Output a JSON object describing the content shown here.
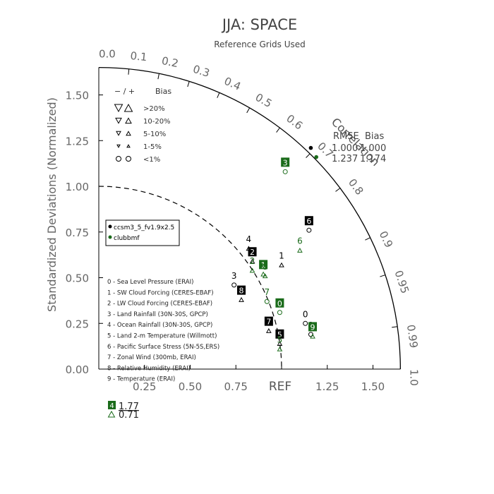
{
  "chart_data": {
    "type": "taylor",
    "title": "JJA: SPACE",
    "subtitle": "Reference Grids Used",
    "ylabel": "Standardized Deviations (Normalized)",
    "xlabel_ref": "REF",
    "correlation_label": "Correlation",
    "std_ticks": [
      "0.25",
      "0.50",
      "0.75",
      "1.00",
      "1.25",
      "1.50"
    ],
    "y_ticks": [
      "0.00",
      "0.25",
      "0.50",
      "0.75",
      "1.00",
      "1.25",
      "1.50"
    ],
    "corr_ticks": [
      {
        "label": "0.0",
        "r": 0.0
      },
      {
        "label": "0.1",
        "r": 0.1
      },
      {
        "label": "0.2",
        "r": 0.2
      },
      {
        "label": "0.3",
        "r": 0.3
      },
      {
        "label": "0.4",
        "r": 0.4
      },
      {
        "label": "0.5",
        "r": 0.5
      },
      {
        "label": "0.6",
        "r": 0.6
      },
      {
        "label": "0.7",
        "r": 0.7
      },
      {
        "label": "0.8",
        "r": 0.8
      },
      {
        "label": "0.9",
        "r": 0.9
      },
      {
        "label": "0.95",
        "r": 0.95
      },
      {
        "label": "0.99",
        "r": 0.99
      },
      {
        "label": "1.0",
        "r": 1.0
      }
    ],
    "axis_max": 1.65,
    "bias_legend": {
      "header_sign": "− / +",
      "header_bias": "Bias",
      "rows": [
        {
          "label": ">20%",
          "size": 11
        },
        {
          "label": "10-20%",
          "size": 8
        },
        {
          "label": "5-10%",
          "size": 6
        },
        {
          "label": "1-5%",
          "size": 4
        },
        {
          "label": "<1%",
          "size": 0
        }
      ]
    },
    "case_legend": {
      "entries": [
        {
          "name": "ccsm3_5_fv1.9x2.5",
          "color": "#000000"
        },
        {
          "name": "clubbmf",
          "color": "#1a6b1a"
        }
      ]
    },
    "variables": [
      "0 - Sea Level Pressure (ERAI)",
      "1 - SW Cloud Forcing (CERES-EBAF)",
      "2 - LW Cloud Forcing (CERES-EBAF)",
      "3 - Land Rainfall (30N-30S, GPCP)",
      "4 - Ocean Rainfall (30N-30S, GPCP)",
      "5 - Land 2-m Temperature (Willmott)",
      "6 - Pacific Surface Stress (5N-5S,ERS)",
      "7 - Zonal Wind (300mb, ERAI)",
      "8 - Relative Humidity (ERAI)",
      "9 - Temperature (ERAI)"
    ],
    "rmse_bias": {
      "header_rmse": "RMSE",
      "header_bias": "Bias",
      "rows": [
        {
          "rmse": "1.000",
          "bias": "1.000",
          "color": "#000000",
          "x": 1.16,
          "y": 1.21
        },
        {
          "rmse": "1.237",
          "bias": "1.174",
          "color": "#1a6b1a",
          "x": 1.19,
          "y": 1.16
        }
      ]
    },
    "outlier": {
      "label": "4",
      "value": "1.77",
      "marker_value": "0.71"
    },
    "series": [
      {
        "name": "ccsm3_5_fv1.9x2.5",
        "color": "#000000",
        "points": [
          {
            "id": "0",
            "x": 1.13,
            "y": 0.3,
            "style": "text"
          },
          {
            "id": "1",
            "x": 1.0,
            "y": 0.62,
            "style": "text"
          },
          {
            "id": "2",
            "x": 0.84,
            "y": 0.64,
            "style": "box"
          },
          {
            "id": "3",
            "x": 0.74,
            "y": 0.51,
            "style": "text"
          },
          {
            "id": "4",
            "x": 0.82,
            "y": 0.71,
            "style": "text"
          },
          {
            "id": "5",
            "x": 0.99,
            "y": 0.19,
            "style": "box"
          },
          {
            "id": "6",
            "x": 1.15,
            "y": 0.81,
            "style": "box"
          },
          {
            "id": "7",
            "x": 0.93,
            "y": 0.26,
            "style": "box"
          },
          {
            "id": "8",
            "x": 0.78,
            "y": 0.43,
            "style": "box"
          },
          {
            "id": "9",
            "x": 1.16,
            "y": 0.24,
            "style": "text"
          }
        ]
      },
      {
        "name": "clubbmf",
        "color": "#1a6b1a",
        "points": [
          {
            "id": "0",
            "x": 0.99,
            "y": 0.36,
            "style": "box"
          },
          {
            "id": "1",
            "x": 0.9,
            "y": 0.57,
            "style": "box"
          },
          {
            "id": "2",
            "x": 0.84,
            "y": 0.59,
            "style": "text"
          },
          {
            "id": "3",
            "x": 1.02,
            "y": 1.13,
            "style": "box"
          },
          {
            "id": "5",
            "x": 0.99,
            "y": 0.16,
            "style": "text"
          },
          {
            "id": "6",
            "x": 1.1,
            "y": 0.7,
            "style": "text"
          },
          {
            "id": "7",
            "x": 0.92,
            "y": 0.42,
            "style": "text"
          },
          {
            "id": "8",
            "x": 0.91,
            "y": 0.56,
            "style": "text"
          },
          {
            "id": "9",
            "x": 1.17,
            "y": 0.23,
            "style": "box"
          }
        ]
      }
    ]
  }
}
